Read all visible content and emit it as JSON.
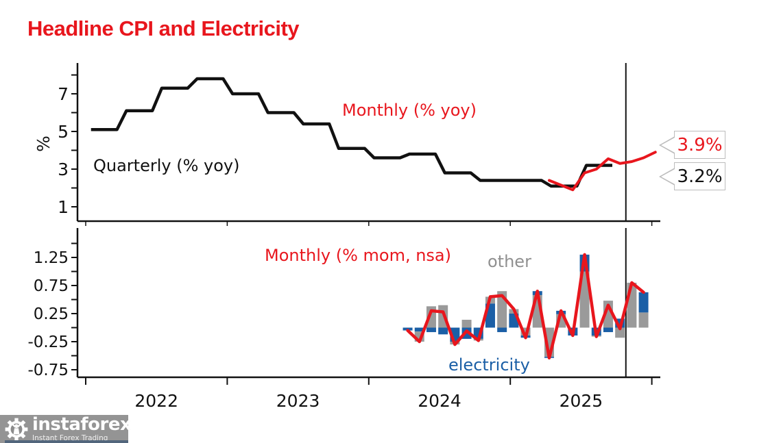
{
  "title": {
    "text": "Headline CPI and Electricity"
  },
  "colors": {
    "red": "#e8161d",
    "black": "#111111",
    "blue": "#1b5fa6",
    "gray": "#9a9a9a",
    "axis": "#111111",
    "label_gray": "#909090",
    "callout_border": "#bcbcbc"
  },
  "annotations": {
    "monthly_latest": "3.9%",
    "quarterly_latest": "3.2%"
  },
  "xaxis": {
    "year_labels": [
      "2022",
      "2023",
      "2024",
      "2025"
    ],
    "year_label_months": [
      6,
      18,
      30,
      42
    ],
    "tick_months": [
      0,
      12,
      24,
      36,
      48
    ]
  },
  "watermark": {
    "brand": "instaforex",
    "tagline": "Instant Forex Trading"
  },
  "chart_data": [
    {
      "type": "line",
      "panel": "top",
      "ylabel": "%",
      "ylim": [
        0.2,
        8.6
      ],
      "yticks": [
        {
          "v": 7,
          "label": "7"
        },
        {
          "v": 5,
          "label": "5"
        },
        {
          "v": 3,
          "label": "3"
        },
        {
          "v": 1,
          "label": "1"
        }
      ],
      "yticks_minor": [
        8,
        6,
        4,
        2
      ],
      "now_line_month": 45.8,
      "series": [
        {
          "name": "Quarterly (% yoy)",
          "color": "black",
          "style": "quarterly-step",
          "quarters": [
            "2022Q1",
            "2022Q2",
            "2022Q3",
            "2022Q4",
            "2023Q1",
            "2023Q2",
            "2023Q3",
            "2023Q4",
            "2024Q1",
            "2024Q2",
            "2024Q3",
            "2024Q4",
            "2025Q1",
            "2025Q2",
            "2025Q3"
          ],
          "values": [
            5.1,
            6.1,
            7.3,
            7.8,
            7.0,
            6.0,
            5.4,
            4.1,
            3.6,
            3.8,
            2.8,
            2.4,
            2.4,
            2.1,
            3.2
          ]
        },
        {
          "name": "Monthly (% yoy)",
          "color": "red",
          "style": "line",
          "months": [
            "2025-04",
            "2025-05",
            "2025-06",
            "2025-07",
            "2025-08",
            "2025-09",
            "2025-10",
            "2025-11",
            "2025-12",
            "2026-01"
          ],
          "month_index": [
            39,
            40,
            41,
            42,
            43,
            44,
            45,
            46,
            47,
            48
          ],
          "values": [
            2.4,
            2.15,
            1.9,
            2.8,
            3.0,
            3.55,
            3.3,
            3.4,
            3.6,
            3.9
          ]
        }
      ],
      "end_labels": {
        "monthly": "3.9%",
        "quarterly": "3.2%"
      }
    },
    {
      "type": "bar",
      "panel": "bottom",
      "stacked": true,
      "line_label": "Monthly (% mom, nsa)",
      "series_labels": {
        "other": "other",
        "electricity": "electricity"
      },
      "ylim": [
        -0.88,
        1.77
      ],
      "yticks": [
        {
          "v": 1.25,
          "label": "1.25"
        },
        {
          "v": 0.75,
          "label": "0.75"
        },
        {
          "v": 0.25,
          "label": "0.25"
        },
        {
          "v": -0.25,
          "label": "-0.25"
        },
        {
          "v": -0.75,
          "label": "-0.75"
        }
      ],
      "yticks_minor": [
        1.5,
        1.0,
        0.5,
        0.0,
        -0.5
      ],
      "months": [
        "2024-04",
        "2024-05",
        "2024-06",
        "2024-07",
        "2024-08",
        "2024-09",
        "2024-10",
        "2024-11",
        "2024-12",
        "2025-01",
        "2025-02",
        "2025-03",
        "2025-04",
        "2025-05",
        "2025-06",
        "2025-07",
        "2025-08",
        "2025-09",
        "2025-10",
        "2025-11",
        "2025-12"
      ],
      "month_index": [
        27,
        28,
        29,
        30,
        31,
        32,
        33,
        34,
        35,
        36,
        37,
        38,
        39,
        40,
        41,
        42,
        43,
        44,
        45,
        46,
        47
      ],
      "electricity": [
        -0.05,
        -0.07,
        -0.08,
        -0.12,
        -0.25,
        -0.2,
        -0.2,
        0.43,
        -0.08,
        0.25,
        -0.04,
        0.07,
        -0.02,
        0.06,
        -0.14,
        0.3,
        -0.14,
        -0.08,
        0.16,
        0.0,
        0.36
      ],
      "other": [
        0.0,
        -0.18,
        0.38,
        0.4,
        -0.05,
        0.14,
        -0.03,
        0.12,
        0.65,
        0.08,
        -0.14,
        0.58,
        -0.52,
        0.24,
        0.0,
        1.0,
        -0.02,
        0.48,
        -0.18,
        0.8,
        0.27
      ],
      "first_stacked": [
        "e",
        "e",
        "e",
        "e",
        "e",
        "e",
        "e",
        "e",
        "e",
        "e",
        "o",
        "o",
        "o",
        "o",
        "e",
        "o",
        "e",
        "e",
        "e",
        "o",
        "o"
      ],
      "total": [
        -0.05,
        -0.25,
        0.3,
        0.28,
        -0.3,
        -0.06,
        -0.23,
        0.55,
        0.57,
        0.33,
        -0.18,
        0.65,
        -0.54,
        0.3,
        -0.14,
        1.3,
        -0.16,
        0.4,
        -0.02,
        0.8,
        0.63
      ]
    }
  ]
}
